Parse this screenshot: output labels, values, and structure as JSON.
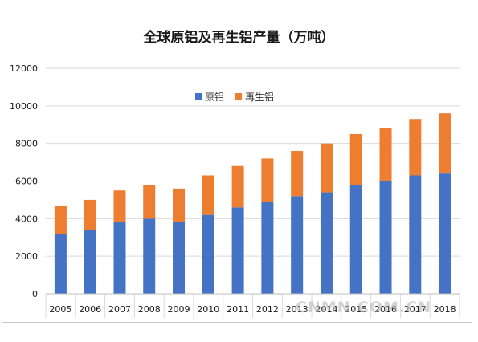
{
  "chart_data": {
    "type": "bar",
    "stacked": true,
    "title": "全球原铝及再生铝产量（万吨）",
    "categories": [
      "2005",
      "2006",
      "2007",
      "2008",
      "2009",
      "2010",
      "2011",
      "2012",
      "2013",
      "2014",
      "2015",
      "2016",
      "2017",
      "2018"
    ],
    "series": [
      {
        "name": "原铝",
        "color": "#4472c4",
        "values": [
          3200,
          3400,
          3800,
          4000,
          3800,
          4200,
          4600,
          4900,
          5200,
          5400,
          5800,
          6000,
          6300,
          6400
        ]
      },
      {
        "name": "再生铝",
        "color": "#ed7d31",
        "values": [
          1500,
          1600,
          1700,
          1800,
          1800,
          2100,
          2200,
          2300,
          2400,
          2600,
          2700,
          2800,
          3000,
          3200
        ]
      }
    ],
    "ylim": [
      0,
      12000
    ],
    "yticks": [
      0,
      2000,
      4000,
      6000,
      8000,
      10000,
      12000
    ],
    "grid": true,
    "legend_position": "top-center"
  },
  "watermark": "CNMN.COM.CN"
}
